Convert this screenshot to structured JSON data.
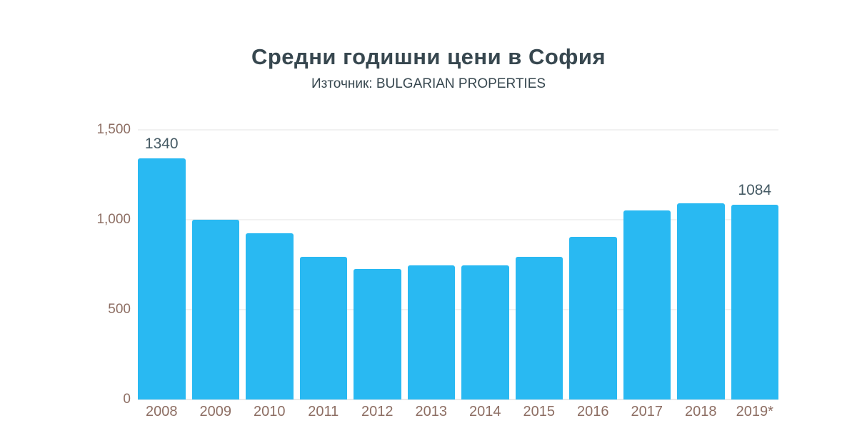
{
  "header": {
    "title": "Средни годишни цени в София",
    "subtitle": "Източник: BULGARIAN PROPERTIES"
  },
  "colors": {
    "bar": "#29b9f2",
    "title": "#37474f",
    "subtitle": "#37474f",
    "axis": "#8d6e63",
    "value_label": "#455a64"
  },
  "chart_data": {
    "type": "bar",
    "title": "Средни годишни цени в София",
    "subtitle": "Източник: BULGARIAN PROPERTIES",
    "categories": [
      "2008",
      "2009",
      "2010",
      "2011",
      "2012",
      "2013",
      "2014",
      "2015",
      "2016",
      "2017",
      "2018",
      "2019*"
    ],
    "values": [
      1340,
      1000,
      925,
      795,
      725,
      745,
      745,
      795,
      905,
      1050,
      1090,
      1084
    ],
    "point_labels": {
      "2008": "1340",
      "2019*": "1084"
    },
    "xlabel": "",
    "ylabel": "",
    "ylim": [
      0,
      1500
    ],
    "yticks": [
      {
        "value": 0,
        "label": "0"
      },
      {
        "value": 500,
        "label": "500"
      },
      {
        "value": 1000,
        "label": "1,000"
      },
      {
        "value": 1500,
        "label": "1,500"
      }
    ],
    "grid": "horizontal",
    "legend": "none"
  }
}
